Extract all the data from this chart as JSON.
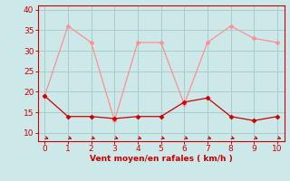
{
  "x": [
    0,
    1,
    2,
    3,
    4,
    5,
    6,
    7,
    8,
    9,
    10
  ],
  "line1_y": [
    19,
    36,
    32,
    13,
    32,
    32,
    17,
    32,
    36,
    33,
    32
  ],
  "line2_y": [
    19,
    14,
    14,
    13.5,
    14,
    14,
    17.5,
    18.5,
    14,
    13,
    14
  ],
  "bg_color": "#cce8e8",
  "grid_color": "#aacccc",
  "line1_color": "#ff9090",
  "line2_color": "#cc0000",
  "axis_color": "#cc0000",
  "label_color": "#cc0000",
  "xlabel": "Vent moyen/en rafales ( km/h )",
  "ylim": [
    8,
    41
  ],
  "xlim": [
    -0.3,
    10.3
  ],
  "yticks": [
    10,
    15,
    20,
    25,
    30,
    35,
    40
  ],
  "xticks": [
    0,
    1,
    2,
    3,
    4,
    5,
    6,
    7,
    8,
    9,
    10
  ],
  "marker": "D",
  "marker_size": 2.5,
  "line_width": 0.9
}
